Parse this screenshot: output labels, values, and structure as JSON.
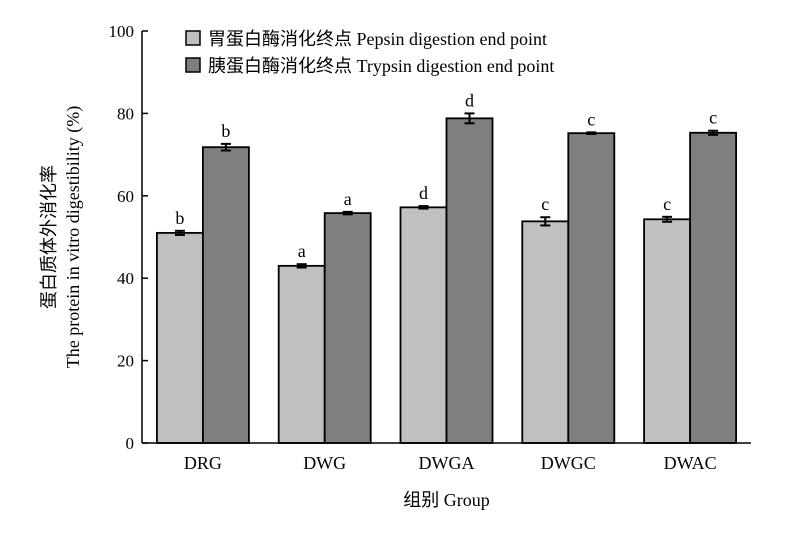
{
  "chart_data": {
    "type": "bar",
    "categories": [
      "DRG",
      "DWG",
      "DWGA",
      "DWGC",
      "DWAC"
    ],
    "series": [
      {
        "name": "胃蛋白酶消化终点 Pepsin digestion end point",
        "color": "#c0c0c0",
        "values": [
          51,
          43,
          57.2,
          53.8,
          54.3
        ],
        "errors": [
          0.5,
          0.4,
          0.3,
          1.0,
          0.6
        ],
        "labels": [
          "b",
          "a",
          "d",
          "c",
          "c"
        ]
      },
      {
        "name": "胰蛋白酶消化终点 Trypsin digestion end point",
        "color": "#7f7f7f",
        "values": [
          71.8,
          55.8,
          78.8,
          75.2,
          75.3
        ],
        "errors": [
          0.8,
          0.3,
          1.2,
          0.2,
          0.5
        ],
        "labels": [
          "b",
          "a",
          "d",
          "c",
          "c"
        ]
      }
    ],
    "xlabel": "组别 Group",
    "ylabel_line1": "蛋白质体外消化率",
    "ylabel_line2": "The protein in vitro digestibility (%)",
    "ylim": [
      0,
      100
    ],
    "yticks": [
      0,
      20,
      40,
      60,
      80,
      100
    ],
    "grid": false,
    "legend_position": "top-left"
  }
}
